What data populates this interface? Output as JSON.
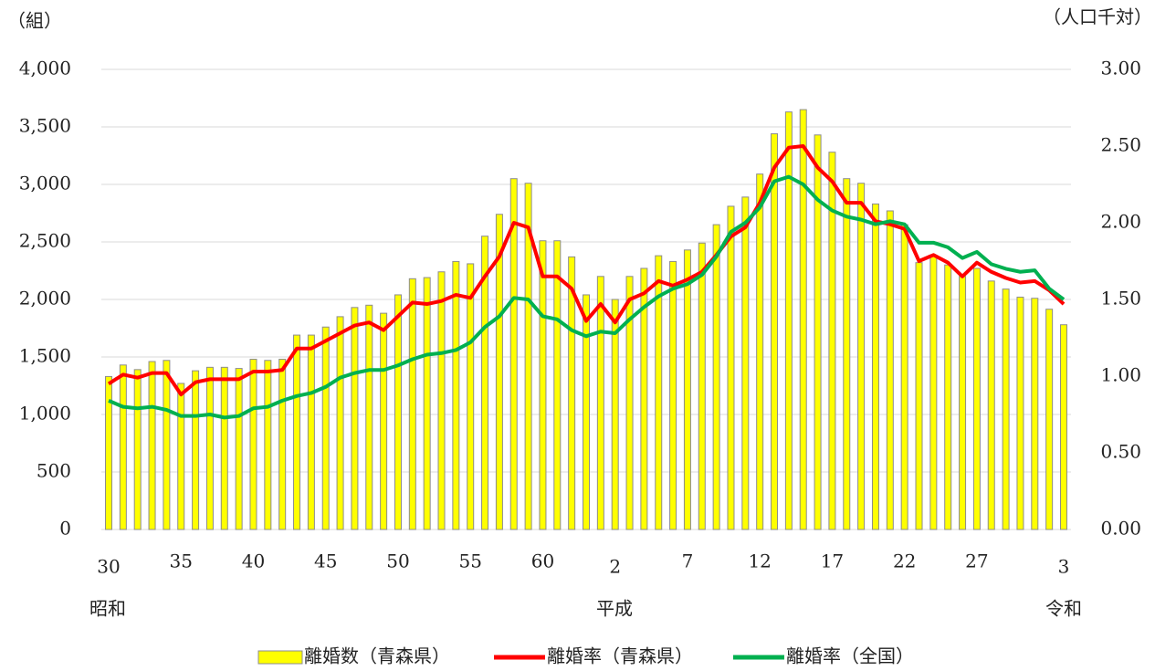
{
  "chart_data": {
    "type": "bar",
    "y_axis_label": "（組）",
    "y2_axis_label": "（人口千対）",
    "annotations": [
      "昭和",
      "平成",
      "令和"
    ],
    "categories": [
      "30",
      null,
      null,
      null,
      null,
      "35",
      null,
      null,
      null,
      null,
      "40",
      null,
      null,
      null,
      null,
      "45",
      null,
      null,
      null,
      null,
      "50",
      null,
      null,
      null,
      null,
      "55",
      null,
      null,
      null,
      null,
      "60",
      null,
      null,
      null,
      null,
      "2",
      null,
      null,
      null,
      null,
      "7",
      null,
      null,
      null,
      null,
      "12",
      null,
      null,
      null,
      null,
      "17",
      null,
      null,
      null,
      null,
      "22",
      null,
      null,
      null,
      null,
      "27",
      null,
      null,
      null,
      null,
      null,
      "3"
    ],
    "ylim": [
      0,
      4000
    ],
    "yticks": [
      0,
      500,
      {
        "value": 1000,
        "label": "1,000"
      },
      {
        "value": 1500,
        "label": "1,500"
      },
      {
        "value": 2000,
        "label": "2,000"
      },
      {
        "value": 2500,
        "label": "2,500"
      },
      {
        "value": 3000,
        "label": "3,000"
      },
      {
        "value": 3500,
        "label": "3,500"
      },
      {
        "value": 4000,
        "label": "4,000"
      }
    ],
    "y2lim": [
      0,
      3
    ],
    "y2ticks": [
      {
        "value": 0,
        "label": "0.00"
      },
      {
        "value": 0.5,
        "label": "0.50"
      },
      {
        "value": 1,
        "label": "1.00"
      },
      {
        "value": 1.5,
        "label": "1.50"
      },
      {
        "value": 2,
        "label": "2.00"
      },
      {
        "value": 2.5,
        "label": "2.50"
      },
      {
        "value": 3,
        "label": "3.00"
      }
    ],
    "grid": true,
    "legend": "bottom",
    "series": [
      {
        "name": "離婚数（青森県）",
        "type": "bar",
        "color": "#ffff00",
        "values": [
          1330,
          1430,
          1390,
          1460,
          1470,
          1270,
          1380,
          1410,
          1410,
          1400,
          1480,
          1470,
          1480,
          1690,
          1690,
          1760,
          1850,
          1930,
          1950,
          1880,
          2040,
          2180,
          2190,
          2240,
          2330,
          2310,
          2550,
          2740,
          3050,
          3010,
          2510,
          2510,
          2370,
          2040,
          2200,
          2000,
          2200,
          2270,
          2380,
          2330,
          2430,
          2490,
          2650,
          2810,
          2890,
          3090,
          3440,
          3630,
          3650,
          3430,
          3280,
          3050,
          3010,
          2830,
          2770,
          2650,
          2320,
          2380,
          2300,
          2200,
          2270,
          2160,
          2090,
          2020,
          2010,
          1915,
          1780
        ]
      },
      {
        "name": "離婚率（青森県）",
        "type": "line",
        "axis": "y2",
        "color": "#ff0000",
        "values": [
          0.95,
          1.01,
          0.99,
          1.02,
          1.02,
          0.88,
          0.96,
          0.98,
          0.98,
          0.98,
          1.03,
          1.03,
          1.04,
          1.18,
          1.18,
          1.23,
          1.28,
          1.33,
          1.35,
          1.3,
          1.39,
          1.48,
          1.47,
          1.49,
          1.53,
          1.51,
          1.65,
          1.78,
          2.0,
          1.97,
          1.65,
          1.65,
          1.57,
          1.36,
          1.47,
          1.35,
          1.5,
          1.54,
          1.62,
          1.59,
          1.63,
          1.68,
          1.79,
          1.91,
          1.97,
          2.13,
          2.36,
          2.49,
          2.5,
          2.36,
          2.27,
          2.13,
          2.13,
          2.01,
          1.99,
          1.96,
          1.75,
          1.79,
          1.74,
          1.65,
          1.74,
          1.68,
          1.64,
          1.61,
          1.62,
          1.56,
          1.47
        ]
      },
      {
        "name": "離婚率（全国）",
        "type": "line",
        "axis": "y2",
        "color": "#00b050",
        "values": [
          0.84,
          0.8,
          0.79,
          0.8,
          0.78,
          0.74,
          0.74,
          0.75,
          0.73,
          0.74,
          0.79,
          0.8,
          0.84,
          0.87,
          0.89,
          0.93,
          0.99,
          1.02,
          1.04,
          1.04,
          1.07,
          1.11,
          1.14,
          1.15,
          1.17,
          1.22,
          1.32,
          1.39,
          1.51,
          1.5,
          1.39,
          1.37,
          1.3,
          1.26,
          1.29,
          1.28,
          1.37,
          1.45,
          1.52,
          1.57,
          1.6,
          1.66,
          1.78,
          1.94,
          2.0,
          2.1,
          2.27,
          2.3,
          2.25,
          2.15,
          2.08,
          2.04,
          2.02,
          1.99,
          2.01,
          1.99,
          1.87,
          1.87,
          1.84,
          1.77,
          1.81,
          1.73,
          1.7,
          1.68,
          1.69,
          1.57,
          1.5
        ]
      }
    ]
  }
}
